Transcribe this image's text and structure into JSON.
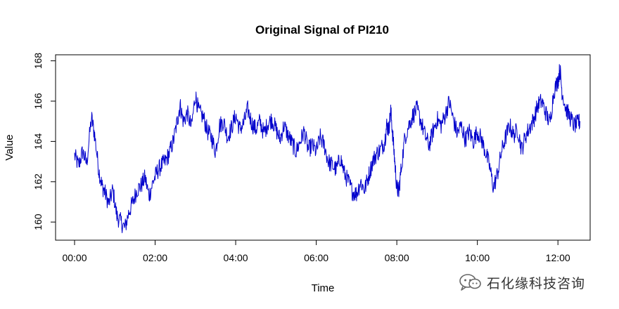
{
  "chart_data": {
    "type": "line",
    "title": "Original Signal of PI210",
    "xlabel": "Time",
    "ylabel": "Value",
    "xlim": [
      0,
      12.8
    ],
    "ylim": [
      159.1,
      168.3
    ],
    "x_ticks": [
      0,
      2,
      4,
      6,
      8,
      10,
      12
    ],
    "x_tick_labels": [
      "00:00",
      "02:00",
      "04:00",
      "06:00",
      "08:00",
      "10:00",
      "12:00"
    ],
    "y_ticks": [
      160,
      162,
      164,
      166,
      168
    ],
    "y_tick_labels": [
      "160",
      "162",
      "164",
      "166",
      "168"
    ],
    "grid": false,
    "legend": "none",
    "line_color": "#0000cc",
    "series": [
      {
        "x": [
          0.0,
          0.1,
          0.2,
          0.3,
          0.42,
          0.5,
          0.6,
          0.68,
          0.75,
          0.85,
          0.95,
          1.05,
          1.15,
          1.25,
          1.35,
          1.45,
          1.55,
          1.65,
          1.75,
          1.85,
          1.95,
          2.05,
          2.15,
          2.25,
          2.35,
          2.45,
          2.55,
          2.62,
          2.7,
          2.8,
          2.9,
          3.0,
          3.08,
          3.2,
          3.3,
          3.4,
          3.5,
          3.6,
          3.7,
          3.8,
          3.9,
          4.0,
          4.1,
          4.2,
          4.3,
          4.4,
          4.5,
          4.6,
          4.7,
          4.8,
          4.9,
          5.0,
          5.1,
          5.2,
          5.3,
          5.4,
          5.5,
          5.6,
          5.7,
          5.8,
          5.9,
          6.0,
          6.1,
          6.2,
          6.3,
          6.4,
          6.5,
          6.6,
          6.7,
          6.8,
          6.9,
          7.0,
          7.1,
          7.2,
          7.3,
          7.4,
          7.5,
          7.6,
          7.7,
          7.75,
          7.8,
          7.85,
          7.9,
          7.95,
          8.0,
          8.05,
          8.1,
          8.2,
          8.3,
          8.4,
          8.5,
          8.6,
          8.7,
          8.8,
          8.9,
          9.0,
          9.1,
          9.2,
          9.3,
          9.4,
          9.5,
          9.6,
          9.7,
          9.8,
          9.9,
          10.0,
          10.1,
          10.2,
          10.3,
          10.4,
          10.5,
          10.6,
          10.7,
          10.8,
          10.9,
          11.0,
          11.1,
          11.2,
          11.3,
          11.4,
          11.5,
          11.6,
          11.7,
          11.8,
          11.9,
          12.0,
          12.05,
          12.1,
          12.2,
          12.3,
          12.4,
          12.5,
          12.55
        ],
        "y": [
          163.3,
          162.8,
          163.5,
          162.9,
          165.2,
          164.3,
          162.6,
          161.8,
          161.5,
          160.9,
          161.6,
          160.3,
          160.0,
          159.7,
          160.5,
          161.0,
          161.6,
          161.8,
          162.2,
          161.3,
          162.0,
          162.5,
          162.8,
          163.0,
          163.4,
          164.0,
          165.0,
          165.8,
          165.0,
          165.4,
          164.7,
          166.3,
          165.5,
          165.2,
          164.5,
          164.2,
          163.5,
          164.8,
          165.0,
          164.2,
          164.7,
          165.3,
          164.6,
          164.9,
          165.6,
          164.9,
          164.6,
          165.0,
          164.4,
          164.9,
          165.1,
          164.6,
          164.1,
          164.8,
          164.3,
          163.9,
          163.5,
          164.0,
          164.5,
          163.6,
          163.8,
          163.5,
          164.2,
          163.8,
          163.0,
          162.8,
          162.6,
          163.2,
          162.4,
          162.0,
          161.5,
          161.4,
          162.0,
          161.6,
          162.3,
          163.0,
          163.4,
          163.6,
          164.0,
          164.8,
          164.6,
          165.5,
          164.3,
          163.0,
          161.7,
          161.5,
          162.5,
          164.2,
          164.8,
          165.3,
          165.6,
          165.0,
          164.3,
          163.8,
          164.5,
          165.1,
          164.8,
          165.3,
          166.0,
          165.1,
          164.4,
          164.8,
          164.1,
          164.5,
          164.0,
          164.5,
          164.1,
          163.5,
          162.8,
          161.7,
          162.4,
          163.5,
          164.2,
          164.8,
          164.3,
          164.6,
          163.6,
          164.3,
          164.7,
          165.1,
          165.8,
          166.0,
          165.4,
          164.9,
          166.5,
          167.0,
          167.6,
          166.5,
          165.6,
          165.2,
          164.8,
          164.9,
          165.0
        ]
      }
    ]
  },
  "watermark": {
    "icon": "wechat-icon",
    "text": "石化缘科技咨询"
  }
}
